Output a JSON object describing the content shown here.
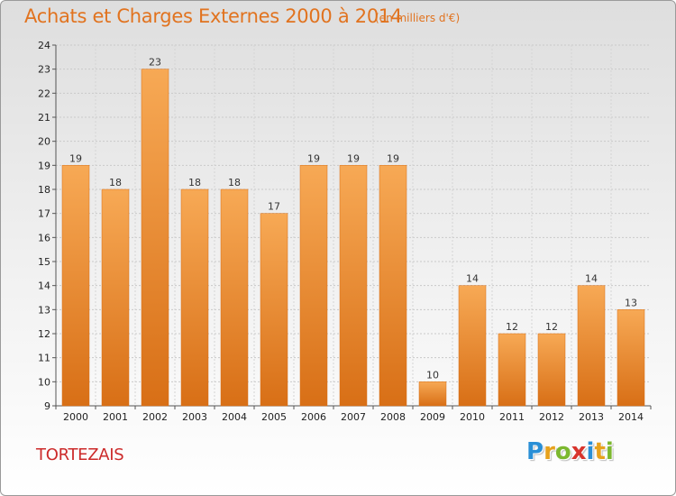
{
  "page": {
    "title": "Achats et Charges Externes 2000 à 2014",
    "subtitle": "(en milliers d'€)",
    "commune": "TORTEZAIS",
    "logo": {
      "letters": [
        "P",
        "r",
        "o",
        "x",
        "i",
        "t",
        "i"
      ],
      "colors": [
        "#2a8fd6",
        "#e7a21d",
        "#7cb82f",
        "#d8342c",
        "#2a8fd6",
        "#e7a21d",
        "#7cb82f"
      ]
    }
  },
  "chart_data": {
    "type": "bar",
    "title": "Achats et Charges Externes 2000 à 2014",
    "subtitle": "(en milliers d'€)",
    "xlabel": "",
    "ylabel": "",
    "categories": [
      "2000",
      "2001",
      "2002",
      "2003",
      "2004",
      "2005",
      "2006",
      "2007",
      "2008",
      "2009",
      "2010",
      "2011",
      "2012",
      "2013",
      "2014"
    ],
    "values": [
      19,
      18,
      23,
      18,
      18,
      17,
      19,
      19,
      19,
      10,
      14,
      12,
      12,
      14,
      13
    ],
    "ylim": [
      9,
      24
    ],
    "yticks": [
      9,
      10,
      11,
      12,
      13,
      14,
      15,
      16,
      17,
      18,
      19,
      20,
      21,
      22,
      23,
      24
    ],
    "grid": true,
    "bar_color": "#f0933a",
    "bar_color_light": "#f7a955",
    "bar_color_dark": "#d86f16"
  }
}
